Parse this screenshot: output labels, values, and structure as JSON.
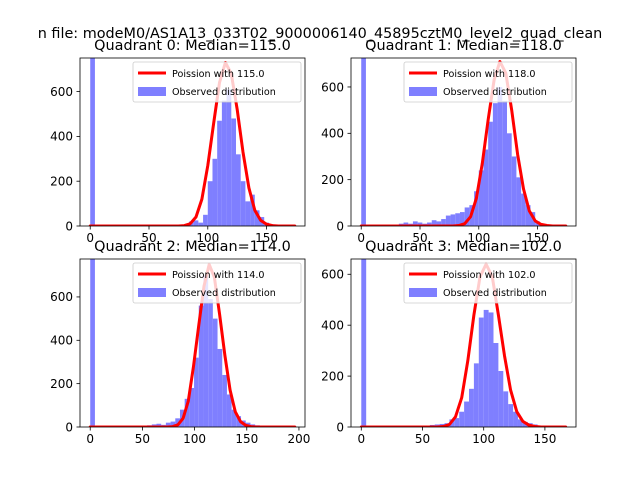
{
  "figure": {
    "suptitle": "n file: modeM0/AS1A13_033T02_9000006140_45895cztM0_level2_quad_clean"
  },
  "colors": {
    "poisson": "#ff0000",
    "observed": "#7f7fff",
    "axes": "#000000",
    "background": "#ffffff"
  },
  "chart_data": [
    {
      "type": "bar",
      "title": "Quadrant 0: Median=115.0",
      "xlabel": "",
      "ylabel": "",
      "xlim": [
        -8.7,
        182.7
      ],
      "ylim": [
        0,
        750
      ],
      "xticks": [
        0,
        50,
        100,
        150
      ],
      "yticks": [
        0,
        200,
        400,
        600
      ],
      "grid": false,
      "legend_position": "top-right",
      "legend": [
        "Poission with 115.0",
        "Observed distribution"
      ],
      "bin_width": 4,
      "series": [
        {
          "name": "Poission with 115.0",
          "kind": "line",
          "median": 115.0,
          "x": [
            0,
            75,
            80,
            85,
            90,
            95,
            100,
            105,
            110,
            115,
            120,
            125,
            130,
            135,
            140,
            145,
            150,
            155,
            160,
            174
          ],
          "values": [
            0,
            0,
            2,
            10,
            40,
            120,
            270,
            460,
            640,
            730,
            680,
            520,
            330,
            170,
            70,
            25,
            8,
            2,
            0,
            0
          ]
        },
        {
          "name": "Observed distribution",
          "kind": "hist",
          "bins": [
            0,
            80,
            84,
            88,
            92,
            96,
            100,
            104,
            108,
            112,
            116,
            120,
            124,
            128,
            132,
            136,
            140,
            144,
            148,
            152,
            156,
            160,
            164
          ],
          "values": [
            750,
            5,
            20,
            25,
            15,
            50,
            200,
            300,
            470,
            560,
            610,
            480,
            320,
            200,
            110,
            140,
            70,
            40,
            15,
            8,
            4,
            2,
            1
          ]
        }
      ]
    },
    {
      "type": "bar",
      "title": "Quadrant 1: Median=118.0",
      "xlabel": "",
      "ylabel": "",
      "xlim": [
        -8.7,
        182.7
      ],
      "ylim": [
        0,
        725
      ],
      "xticks": [
        0,
        50,
        100,
        150
      ],
      "yticks": [
        0,
        200,
        400,
        600
      ],
      "grid": false,
      "legend_position": "top-right",
      "legend": [
        "Poission with 118.0",
        "Observed distribution"
      ],
      "bin_width": 4,
      "series": [
        {
          "name": "Poission with 118.0",
          "kind": "line",
          "median": 118.0,
          "x": [
            0,
            78,
            83,
            88,
            93,
            98,
            103,
            108,
            113,
            118,
            123,
            128,
            133,
            138,
            143,
            148,
            153,
            158,
            163,
            174
          ],
          "values": [
            0,
            0,
            2,
            10,
            40,
            120,
            270,
            460,
            630,
            710,
            660,
            500,
            310,
            160,
            65,
            22,
            7,
            2,
            0,
            0
          ]
        },
        {
          "name": "Observed distribution",
          "kind": "hist",
          "bins": [
            0,
            28,
            32,
            36,
            40,
            44,
            48,
            52,
            56,
            60,
            64,
            68,
            72,
            76,
            80,
            84,
            88,
            92,
            96,
            100,
            104,
            108,
            112,
            116,
            120,
            124,
            128,
            132,
            136,
            140,
            144,
            148,
            152,
            156,
            160,
            164
          ],
          "values": [
            725,
            5,
            10,
            15,
            10,
            20,
            15,
            10,
            15,
            25,
            20,
            30,
            45,
            50,
            55,
            60,
            80,
            90,
            150,
            240,
            330,
            450,
            530,
            600,
            540,
            400,
            300,
            210,
            140,
            90,
            60,
            20,
            10,
            5,
            3,
            2
          ]
        }
      ]
    },
    {
      "type": "bar",
      "title": "Quadrant 2: Median=114.0",
      "xlabel": "",
      "ylabel": "",
      "xlim": [
        -9.8,
        205.8
      ],
      "ylim": [
        0,
        775
      ],
      "xticks": [
        0,
        50,
        100,
        150,
        200
      ],
      "yticks": [
        0,
        200,
        400,
        600
      ],
      "grid": false,
      "legend_position": "top-right",
      "legend": [
        "Poission with 114.0",
        "Observed distribution"
      ],
      "bin_width": 4.5,
      "series": [
        {
          "name": "Poission with 114.0",
          "kind": "line",
          "median": 114.0,
          "x": [
            0,
            74,
            79,
            84,
            89,
            94,
            99,
            104,
            109,
            114,
            119,
            124,
            129,
            134,
            139,
            144,
            149,
            154,
            159,
            196
          ],
          "values": [
            0,
            0,
            2,
            10,
            40,
            120,
            280,
            470,
            650,
            750,
            690,
            520,
            330,
            170,
            70,
            25,
            8,
            2,
            0,
            0
          ]
        },
        {
          "name": "Observed distribution",
          "kind": "hist",
          "bins": [
            0,
            45,
            50,
            54.5,
            59,
            63.5,
            68,
            72.5,
            77,
            81.5,
            86,
            90.5,
            95,
            99.5,
            104,
            108.5,
            113,
            117.5,
            122,
            126.5,
            131,
            135.5,
            140,
            144.5,
            149,
            153.5,
            158,
            162.5,
            167,
            171.5
          ],
          "values": [
            775,
            3,
            5,
            8,
            12,
            15,
            10,
            20,
            25,
            40,
            80,
            130,
            180,
            320,
            560,
            700,
            590,
            500,
            360,
            240,
            150,
            80,
            50,
            30,
            20,
            12,
            8,
            5,
            3,
            2
          ]
        }
      ]
    },
    {
      "type": "bar",
      "title": "Quadrant 3: Median=102.0",
      "xlabel": "",
      "ylabel": "",
      "xlim": [
        -8.4,
        175.4
      ],
      "ylim": [
        0,
        660
      ],
      "xticks": [
        0,
        50,
        100,
        150
      ],
      "yticks": [
        0,
        200,
        400,
        600
      ],
      "grid": false,
      "legend_position": "top-right",
      "legend": [
        "Poission with 102.0",
        "Observed distribution"
      ],
      "bin_width": 4,
      "series": [
        {
          "name": "Poission with 102.0",
          "kind": "line",
          "median": 102.0,
          "x": [
            0,
            62,
            67,
            72,
            77,
            82,
            87,
            92,
            97,
            102,
            107,
            112,
            117,
            122,
            127,
            132,
            137,
            142,
            147,
            167
          ],
          "values": [
            0,
            0,
            2,
            10,
            40,
            115,
            260,
            440,
            590,
            640,
            590,
            440,
            280,
            145,
            60,
            22,
            7,
            2,
            0,
            0
          ]
        },
        {
          "name": "Observed distribution",
          "kind": "hist",
          "bins": [
            0,
            40,
            44,
            48,
            52,
            56,
            60,
            64,
            68,
            72,
            76,
            80,
            84,
            88,
            92,
            96,
            100,
            104,
            108,
            112,
            116,
            120,
            124,
            128,
            132,
            136,
            140,
            144,
            148,
            152,
            156,
            160
          ],
          "values": [
            660,
            2,
            3,
            4,
            5,
            8,
            10,
            12,
            15,
            30,
            35,
            60,
            100,
            150,
            250,
            430,
            460,
            450,
            330,
            220,
            140,
            90,
            60,
            30,
            20,
            15,
            10,
            5,
            3,
            2,
            1,
            1
          ]
        }
      ]
    }
  ]
}
